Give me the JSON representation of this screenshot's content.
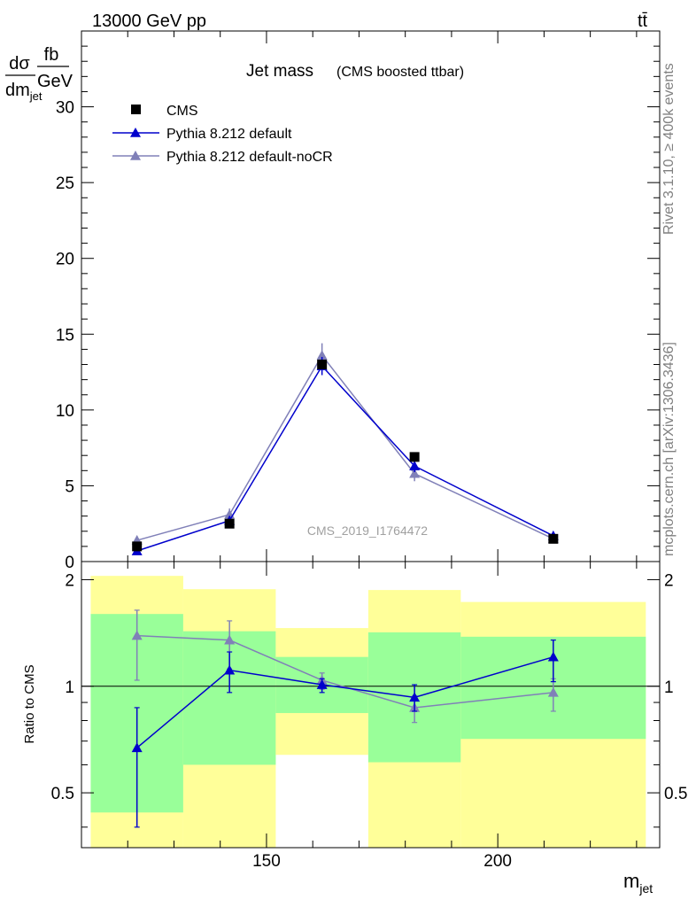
{
  "header": {
    "energy": "13000 GeV pp",
    "process": "tt̄"
  },
  "side": {
    "rivet": "Rivet 3.1.10, ≥ 400k events",
    "site": "mcplots.cern.ch [arXiv:1306.3436]"
  },
  "ylabel_main": {
    "num1": "dσ",
    "den1": "dm",
    "den1_sub": "jet",
    "num2": "fb",
    "den2": "GeV"
  },
  "ylabel_ratio": "Ratio to CMS",
  "xlabel": {
    "main": "m",
    "sub": "jet"
  },
  "watermark": "CMS_2019_I1764472",
  "chart_data": [
    {
      "type": "scatter",
      "title": "Jet mass",
      "subtitle": "(CMS boosted ttbar)",
      "x": [
        122,
        142,
        162,
        182,
        212
      ],
      "xlim": [
        110,
        235
      ],
      "ylim": [
        0,
        35
      ],
      "yticks": [
        0,
        5,
        10,
        15,
        20,
        25,
        30
      ],
      "ytick_labels": [
        "0",
        "5",
        "10",
        "15",
        "20",
        "25",
        "30"
      ],
      "xticks": [
        150,
        200
      ],
      "xtick_labels": [
        "150",
        "200"
      ],
      "legend_position": "top-left",
      "series": [
        {
          "name": "CMS",
          "color": "#000000",
          "marker": "square",
          "values": [
            1.0,
            2.5,
            13.0,
            6.9,
            1.5
          ],
          "err": [
            0.1,
            0.15,
            0.6,
            0.3,
            0.1
          ]
        },
        {
          "name": "Pythia 8.212 default",
          "color": "#0000cc",
          "marker": "triangle",
          "values": [
            0.7,
            2.7,
            12.9,
            6.3,
            1.7
          ],
          "err": [
            0.2,
            0.3,
            0.6,
            0.4,
            0.2
          ]
        },
        {
          "name": "Pythia 8.212 default-noCR",
          "color": "#8080b8",
          "marker": "triangle",
          "values": [
            1.4,
            3.1,
            13.6,
            5.8,
            1.5
          ],
          "err": [
            0.3,
            0.4,
            0.8,
            0.5,
            0.2
          ]
        }
      ]
    },
    {
      "type": "scatter",
      "title": "",
      "x": [
        122,
        142,
        162,
        182,
        212
      ],
      "xlim": [
        110,
        235
      ],
      "ylim": [
        0.35,
        2.25
      ],
      "log_scale": true,
      "yticks": [
        0.5,
        1,
        2
      ],
      "ytick_labels": [
        "0.5",
        "1",
        "2"
      ],
      "bands": [
        {
          "x0": 112,
          "x1": 132,
          "y_lo": 0.44,
          "y_hi": 1.6,
          "out_lo": 0.35,
          "out_hi": 2.05
        },
        {
          "x0": 132,
          "x1": 152,
          "y_lo": 0.6,
          "y_hi": 1.43,
          "out_lo": 0.35,
          "out_hi": 1.88
        },
        {
          "x0": 152,
          "x1": 172,
          "y_lo": 0.84,
          "y_hi": 1.21,
          "out_lo": 0.64,
          "out_hi": 1.46
        },
        {
          "x0": 172,
          "x1": 192,
          "y_lo": 0.61,
          "y_hi": 1.42,
          "out_lo": 0.35,
          "out_hi": 1.87
        },
        {
          "x0": 192,
          "x1": 232,
          "y_lo": 0.71,
          "y_hi": 1.38,
          "out_lo": 0.35,
          "out_hi": 1.73
        }
      ],
      "band_colors": {
        "inner": "#99ff99",
        "outer": "#ffff99"
      },
      "series": [
        {
          "name": "Pythia 8.212 default",
          "color": "#0000cc",
          "values": [
            0.67,
            1.11,
            1.01,
            0.93,
            1.21
          ],
          "err_lo": [
            0.27,
            0.15,
            0.05,
            0.08,
            0.18
          ],
          "err_hi": [
            0.2,
            0.14,
            0.04,
            0.08,
            0.14
          ]
        },
        {
          "name": "Pythia 8.212 default-noCR",
          "color": "#8080b8",
          "values": [
            1.39,
            1.35,
            1.04,
            0.87,
            0.96
          ],
          "err_lo": [
            0.35,
            0.23,
            0.06,
            0.08,
            0.11
          ],
          "err_hi": [
            0.25,
            0.18,
            0.05,
            0.07,
            0.09
          ]
        }
      ]
    }
  ]
}
